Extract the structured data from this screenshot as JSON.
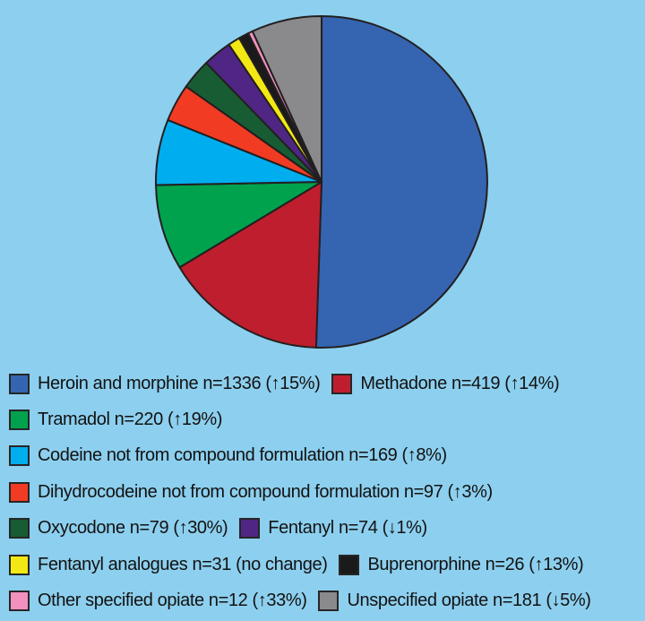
{
  "background_color": "#8dcfee",
  "chart_data": {
    "type": "pie",
    "title": "",
    "start_angle_deg": 0,
    "direction": "clockwise",
    "outline_color": "#231f20",
    "legend_position": "bottom-left",
    "slices": [
      {
        "id": "heroin-and-morphine",
        "label": "Heroin and morphine",
        "n": 1336,
        "change": "↑15%",
        "color": "#3564b0",
        "legend_text": "Heroin and morphine n=1336 (↑15%)"
      },
      {
        "id": "methadone",
        "label": "Methadone",
        "n": 419,
        "change": "↑14%",
        "color": "#bf1e2e",
        "legend_text": "Methadone n=419 (↑14%)"
      },
      {
        "id": "tramadol",
        "label": "Tramadol",
        "n": 220,
        "change": "↑19%",
        "color": "#00a24e",
        "legend_text": "Tramadol n=220 (↑19%)"
      },
      {
        "id": "codeine",
        "label": "Codeine not from compound formulation",
        "n": 169,
        "change": "↑8%",
        "color": "#00aeef",
        "legend_text": "Codeine not from compound formulation n=169 (↑8%)"
      },
      {
        "id": "dihydrocodeine",
        "label": "Dihydrocodeine not from compound formulation",
        "n": 97,
        "change": "↑3%",
        "color": "#f13c23",
        "legend_text": "Dihydrocodeine not from compound formulation n=97 (↑3%)"
      },
      {
        "id": "oxycodone",
        "label": "Oxycodone",
        "n": 79,
        "change": "↑30%",
        "color": "#185c33",
        "legend_text": "Oxycodone n=79 (↑30%)"
      },
      {
        "id": "fentanyl",
        "label": "Fentanyl",
        "n": 74,
        "change": "↓1%",
        "color": "#4f2683",
        "legend_text": "Fentanyl n=74 (↓1%)"
      },
      {
        "id": "fentanyl-analogues",
        "label": "Fentanyl analogues",
        "n": 31,
        "change": "no change",
        "color": "#f2e814",
        "legend_text": "Fentanyl analogues n=31 (no change)"
      },
      {
        "id": "buprenorphine",
        "label": "Buprenorphine",
        "n": 26,
        "change": "↑13%",
        "color": "#1a1a1a",
        "legend_text": "Buprenorphine n=26 (↑13%)"
      },
      {
        "id": "other-specified-opiate",
        "label": "Other specified opiate",
        "n": 12,
        "change": "↑33%",
        "color": "#f391be",
        "legend_text": "Other specified opiate n=12 (↑33%)"
      },
      {
        "id": "unspecified-opiate",
        "label": "Unspecified opiate",
        "n": 181,
        "change": "↓5%",
        "color": "#8a8a8d",
        "legend_text": "Unspecified opiate n=181 (↓5%)"
      }
    ],
    "legend_rows": [
      [
        0,
        1
      ],
      [
        2
      ],
      [
        3
      ],
      [
        4
      ],
      [
        5,
        6
      ],
      [
        7,
        8
      ],
      [
        9,
        10
      ]
    ]
  }
}
